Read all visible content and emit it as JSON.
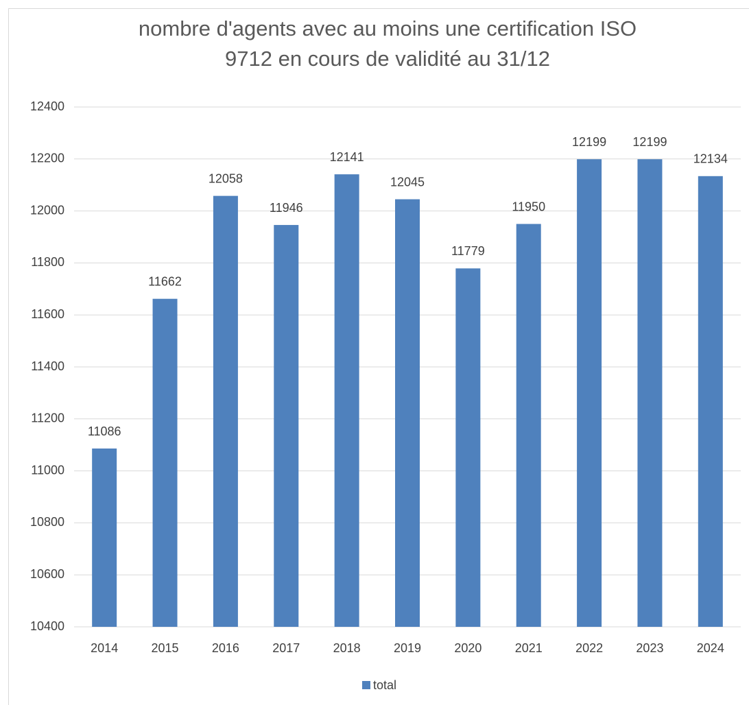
{
  "chart_data": {
    "type": "bar",
    "title": "nombre d'agents avec au moins une certification ISO 9712 en cours de validité au 31/12",
    "categories": [
      "2014",
      "2015",
      "2016",
      "2017",
      "2018",
      "2019",
      "2020",
      "2021",
      "2022",
      "2023",
      "2024"
    ],
    "series": [
      {
        "name": "total",
        "color": "#4f81bd",
        "values": [
          11086,
          11662,
          12058,
          11946,
          12141,
          12045,
          11779,
          11950,
          12199,
          12199,
          12134
        ]
      }
    ],
    "ylim": [
      10400,
      12400
    ],
    "yticks": [
      10400,
      10600,
      10800,
      11000,
      11200,
      11400,
      11600,
      11800,
      12000,
      12200,
      12400
    ],
    "grid": true,
    "legend": "bottom"
  }
}
